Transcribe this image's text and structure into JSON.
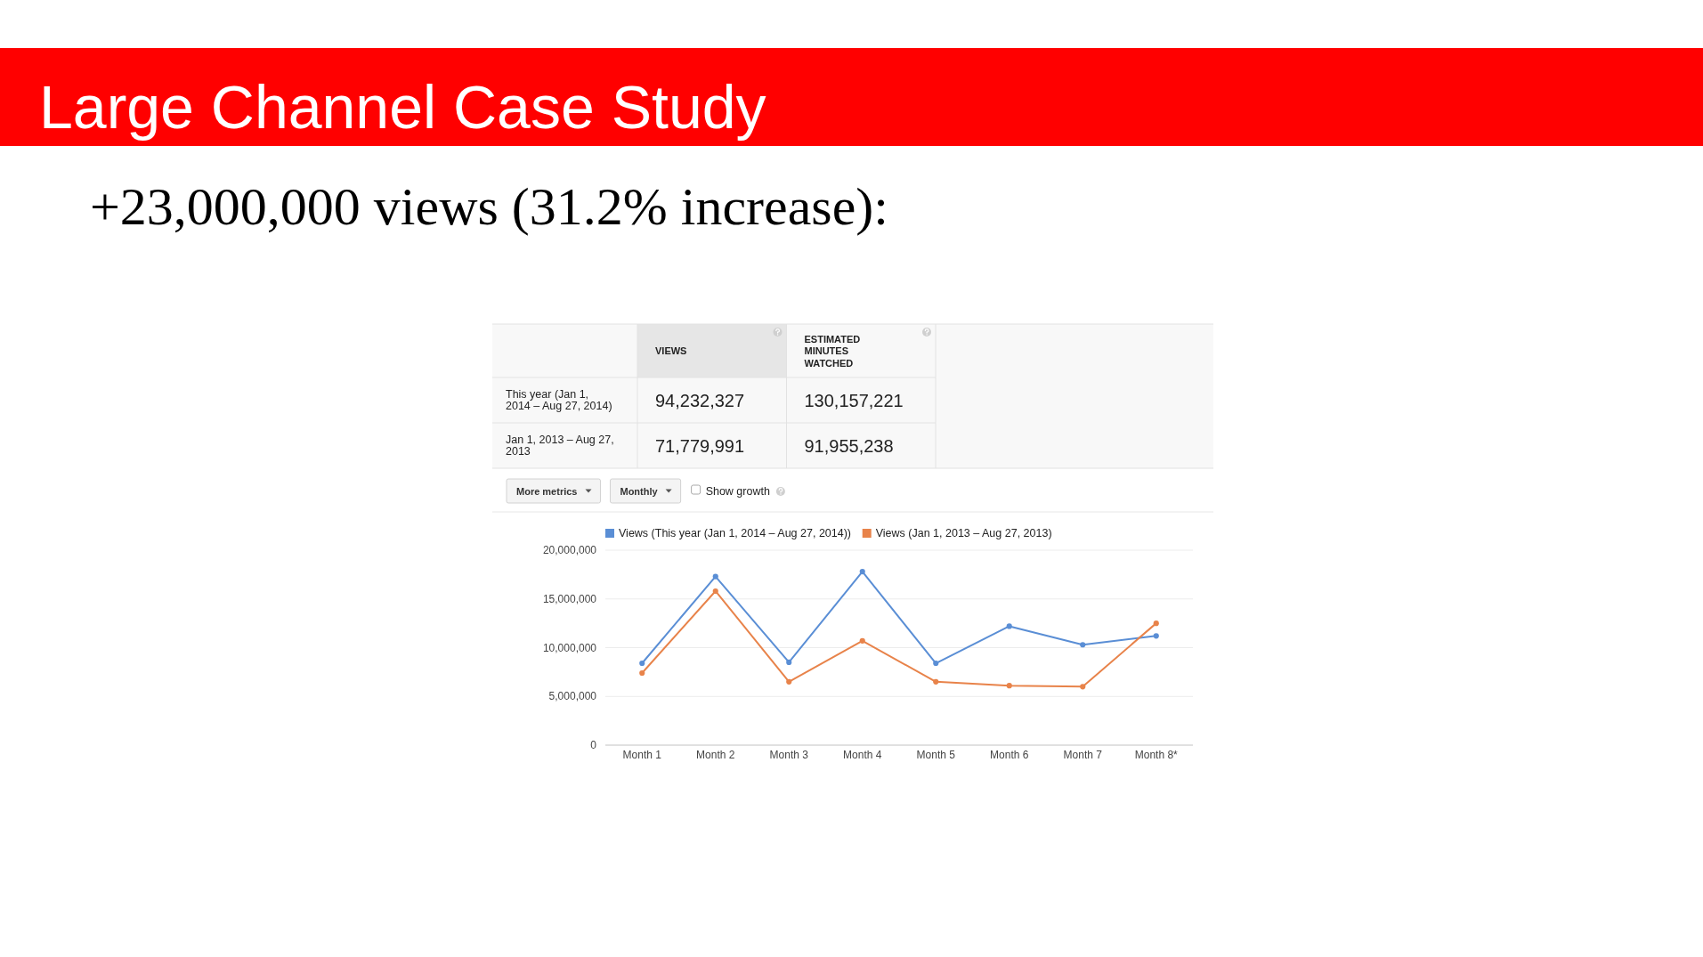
{
  "chart_data": [
    {
      "type": "other",
      "title": "Large Channel Case Study",
      "subtitle": "+23,000,000 views (31.2% increase):",
      "categories": [
        "VIEWS",
        "ESTIMATED MINUTES WATCHED"
      ],
      "y_categories": [
        "This year (Jan 1, 2014 – Aug 27, 2014)",
        "Jan 1, 2013 – Aug 27, 2013"
      ],
      "cell_labels": [
        [
          "94,232,327",
          "130,157,221"
        ],
        [
          "71,779,991",
          "91,955,238"
        ]
      ]
    },
    {
      "type": "line",
      "categories": [
        "Month 1",
        "Month 2",
        "Month 3",
        "Month 4",
        "Month 5",
        "Month 6",
        "Month 7",
        "Month 8*"
      ],
      "series": [
        {
          "name": "Views (This year (Jan 1, 2014 – Aug 27, 2014))",
          "color": "#5a8ed5",
          "values": [
            8400000,
            17300000,
            8500000,
            17800000,
            8400000,
            12200000,
            10300000,
            11200000
          ]
        },
        {
          "name": "Views (Jan 1, 2013 – Aug 27, 2013)",
          "color": "#e8834a",
          "values": [
            7400000,
            15800000,
            6500000,
            10700000,
            6500000,
            6100000,
            6000000,
            12500000
          ]
        }
      ],
      "ylim": [
        0,
        20000000
      ],
      "yticks": [
        {
          "value": 0,
          "label": "0"
        },
        {
          "value": 5000000,
          "label": "5,000,000"
        },
        {
          "value": 10000000,
          "label": "10,000,000"
        },
        {
          "value": 15000000,
          "label": "15,000,000"
        },
        {
          "value": 20000000,
          "label": "20,000,000"
        }
      ],
      "grid": "y",
      "legend": "top",
      "marker": "circle",
      "annotations": [
        "More metrics",
        "Monthly",
        "Show growth"
      ]
    }
  ]
}
